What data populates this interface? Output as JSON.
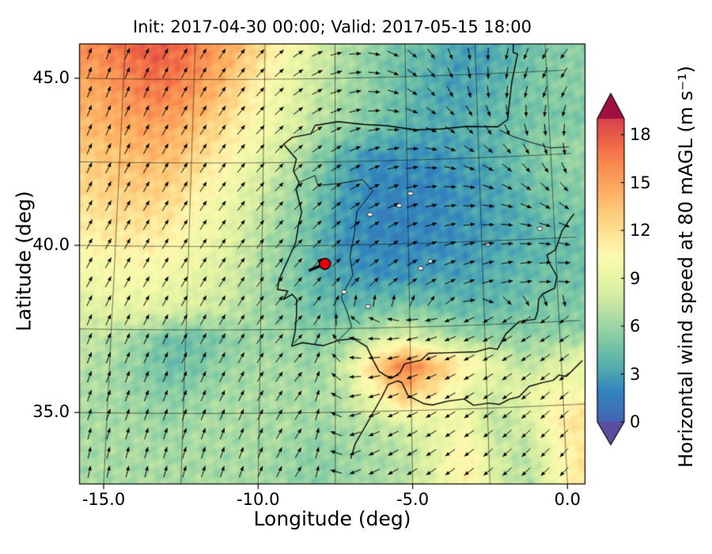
{
  "title": "Init: 2017-04-30 00:00; Valid: 2017-05-15 18:00",
  "axes": {
    "x_label": "Longitude (deg)",
    "y_label": "Latitude (deg)"
  },
  "colorbar": {
    "label": "Horizontal wind speed at 80 mAGL (m s⁻¹)",
    "tick_labels": [
      "0",
      "3",
      "6",
      "9",
      "12",
      "15",
      "18"
    ],
    "tick_values": [
      0,
      3,
      6,
      9,
      12,
      15,
      18
    ],
    "vmin": 0,
    "vmax": 19,
    "under_color": "#5b4ea1",
    "over_color": "#9e0f42"
  },
  "chart_data": {
    "type": "heatmap",
    "title": "Init: 2017-04-30 00:00; Valid: 2017-05-15 18:00",
    "xlabel": "Longitude (deg)",
    "ylabel": "Latitude (deg)",
    "units": "m s⁻¹",
    "x_ticks": [
      {
        "label": "-15.0",
        "value": -15
      },
      {
        "label": "-10.0",
        "value": -10
      },
      {
        "label": "-5.0",
        "value": -5
      },
      {
        "label": "0.0",
        "value": 0
      }
    ],
    "y_ticks": [
      {
        "label": "45.0",
        "value": 45
      },
      {
        "label": "40.0",
        "value": 40
      },
      {
        "label": "35.0",
        "value": 35
      }
    ],
    "lon_range": [
      -16.0,
      0.7
    ],
    "lat_range": [
      33.6,
      46.3
    ],
    "color_stops": [
      [
        0,
        "#4463b1"
      ],
      [
        2,
        "#3287bd"
      ],
      [
        3.5,
        "#54aeae"
      ],
      [
        5,
        "#7cc8a5"
      ],
      [
        6.5,
        "#a9dba3"
      ],
      [
        8,
        "#d5eda2"
      ],
      [
        9.5,
        "#eff8a6"
      ],
      [
        10.5,
        "#fdf9b0"
      ],
      [
        11.5,
        "#fee99c"
      ],
      [
        13,
        "#fdce7d"
      ],
      [
        14.5,
        "#fdae61"
      ],
      [
        16,
        "#f98e52"
      ],
      [
        17.5,
        "#ef6645"
      ],
      [
        19,
        "#d7434e"
      ]
    ],
    "speed_grid": [
      [
        16.5,
        17.5,
        18.5,
        17.5,
        16,
        14.5,
        12.5,
        10.5,
        8.5,
        7,
        6,
        5,
        4.5,
        3.5,
        3,
        3.5,
        4.5,
        5
      ],
      [
        15.5,
        16.5,
        17.5,
        17,
        15.5,
        13.5,
        11.5,
        9.5,
        8,
        6.5,
        5.5,
        4.5,
        4,
        3,
        3,
        4,
        5,
        5.5
      ],
      [
        14.5,
        15.5,
        16.5,
        16,
        14.5,
        12.5,
        10.5,
        9,
        7.5,
        6.5,
        5.5,
        4.5,
        3.5,
        3,
        3.5,
        4.5,
        5,
        5.5
      ],
      [
        14,
        14.5,
        15,
        14.5,
        13,
        11.5,
        10,
        8.5,
        7,
        6,
        5,
        4,
        3.5,
        3.5,
        4,
        4.5,
        5,
        5
      ],
      [
        13,
        13.5,
        14,
        13.5,
        12,
        10.5,
        9,
        7.5,
        5.5,
        3.5,
        2.5,
        2.5,
        2.5,
        3,
        3.5,
        4.5,
        5.5,
        6
      ],
      [
        12.5,
        13,
        13,
        12.5,
        11,
        9.5,
        8,
        6.5,
        5,
        3,
        2,
        2,
        2,
        2.5,
        3,
        4,
        5,
        5.5
      ],
      [
        11.5,
        12,
        12,
        11.5,
        10,
        9,
        7.5,
        6,
        4.5,
        2.5,
        2,
        1.8,
        2,
        2.5,
        3,
        3.5,
        4.5,
        5
      ],
      [
        10.5,
        11,
        11,
        10.5,
        9.5,
        8.5,
        7,
        5.5,
        4,
        2.5,
        2,
        2,
        2.2,
        2.5,
        3,
        3.5,
        4,
        4.5
      ],
      [
        9.5,
        10,
        10,
        9.5,
        9,
        8,
        6.5,
        5.5,
        4,
        3,
        2.5,
        2.5,
        3,
        3,
        3.5,
        4,
        4.5,
        4.5
      ],
      [
        8.5,
        9,
        9,
        8.5,
        8,
        7.5,
        6.5,
        5.5,
        4.5,
        4,
        4.5,
        5,
        4.5,
        4,
        4,
        4.5,
        5,
        5
      ],
      [
        7.5,
        7,
        6,
        4.5,
        4.5,
        5.5,
        6,
        6,
        5.5,
        6,
        7.5,
        8.5,
        7,
        6,
        5.5,
        5.5,
        5.5,
        5.5
      ],
      [
        7,
        6.5,
        5.5,
        4.5,
        5,
        6,
        6.5,
        6.5,
        6,
        8,
        13,
        17,
        14,
        11,
        9,
        7,
        8,
        9
      ],
      [
        6.5,
        6.5,
        6,
        5.5,
        6,
        6.5,
        6.5,
        6.5,
        6.5,
        7,
        10,
        13,
        11,
        9,
        8,
        9,
        10,
        10
      ],
      [
        6.5,
        6.5,
        6.5,
        6,
        6.5,
        6.5,
        6.5,
        6.5,
        6,
        6.5,
        7,
        8,
        9,
        10,
        7,
        8,
        11,
        12
      ],
      [
        6.5,
        6.5,
        6.5,
        6.5,
        6.5,
        6.5,
        6.5,
        6,
        5.5,
        6,
        6.5,
        7,
        9,
        11,
        8,
        7,
        10,
        12
      ]
    ],
    "quiver_u": [
      [
        0.34,
        0.42,
        0.5,
        0.64,
        0.87,
        1.0,
        0.77,
        0.17,
        -0.34,
        -0.64
      ],
      [
        0.34,
        0.42,
        0.5,
        0.64,
        0.82,
        0.98,
        0.87,
        0.34,
        -0.17,
        -0.5
      ],
      [
        0.42,
        0.47,
        0.53,
        0.64,
        0.77,
        0.91,
        1.0,
        0.91,
        0.57,
        0.09
      ],
      [
        0.47,
        0.5,
        0.54,
        0.62,
        0.71,
        0.82,
        0.94,
        1.0,
        0.97,
        0.82
      ],
      [
        0.47,
        0.48,
        0.52,
        0.56,
        0.64,
        0.74,
        0.85,
        0.93,
        0.98,
        1.0
      ],
      [
        0.37,
        0.41,
        0.45,
        0.53,
        0.71,
        -0.98,
        -0.97,
        -0.91,
        -0.87,
        -0.82
      ],
      [
        0.31,
        0.34,
        0.37,
        0.44,
        0.57,
        -0.97,
        -0.91,
        -0.85,
        -0.79,
        -0.74
      ],
      [
        0.21,
        0.24,
        0.28,
        0.34,
        0.5,
        -0.91,
        -0.85,
        -0.79,
        -0.72,
        -0.67
      ]
    ],
    "quiver_v": [
      [
        0.94,
        0.91,
        0.87,
        0.77,
        0.5,
        0.0,
        -0.64,
        -0.98,
        -0.94,
        -0.77
      ],
      [
        0.94,
        0.91,
        0.87,
        0.77,
        0.57,
        0.17,
        -0.5,
        -0.94,
        -0.98,
        -0.87
      ],
      [
        0.91,
        0.88,
        0.85,
        0.77,
        0.64,
        0.42,
        0.09,
        -0.42,
        -0.82,
        -1.0
      ],
      [
        0.88,
        0.87,
        0.84,
        0.79,
        0.71,
        0.57,
        0.34,
        0.09,
        -0.26,
        -0.57
      ],
      [
        0.88,
        0.87,
        0.86,
        0.83,
        0.77,
        0.67,
        0.53,
        0.37,
        0.21,
        0.03
      ],
      [
        0.93,
        0.91,
        0.89,
        0.85,
        0.71,
        0.17,
        -0.26,
        -0.42,
        -0.5,
        -0.57
      ],
      [
        0.95,
        0.94,
        0.93,
        0.9,
        0.82,
        -0.26,
        -0.42,
        -0.53,
        -0.62,
        -0.67
      ],
      [
        0.98,
        0.97,
        0.96,
        0.94,
        0.87,
        -0.42,
        -0.53,
        -0.62,
        -0.69,
        -0.74
      ]
    ],
    "graticule": {
      "lons": [
        -15,
        -12.5,
        -10,
        -7.5,
        -5,
        -2.5,
        0
      ],
      "lats": [
        35,
        37.5,
        40,
        42.5,
        45
      ]
    },
    "coastlines": [
      [
        [
          -1.1,
          46.3
        ],
        [
          -1.15,
          45.6
        ],
        [
          -1.0,
          45.55
        ],
        [
          -1.25,
          44.7
        ],
        [
          -1.45,
          43.6
        ],
        [
          -1.8,
          43.4
        ],
        [
          -2.9,
          43.45
        ],
        [
          -3.8,
          43.4
        ],
        [
          -4.7,
          43.4
        ],
        [
          -5.7,
          43.55
        ],
        [
          -6.5,
          43.6
        ],
        [
          -7.4,
          43.7
        ],
        [
          -8.2,
          43.6
        ],
        [
          -8.35,
          43.35
        ],
        [
          -9.0,
          43.25
        ],
        [
          -9.3,
          43.05
        ],
        [
          -8.85,
          42.6
        ],
        [
          -8.95,
          42.25
        ],
        [
          -8.75,
          41.9
        ],
        [
          -8.85,
          41.7
        ],
        [
          -8.65,
          41.0
        ],
        [
          -8.75,
          40.65
        ],
        [
          -8.85,
          40.1
        ],
        [
          -9.1,
          39.6
        ],
        [
          -9.4,
          39.0
        ],
        [
          -9.45,
          38.7
        ],
        [
          -9.1,
          38.65
        ],
        [
          -9.25,
          38.4
        ],
        [
          -8.95,
          38.55
        ],
        [
          -8.8,
          38.4
        ],
        [
          -8.8,
          37.95
        ],
        [
          -8.85,
          37.4
        ],
        [
          -8.95,
          37.0
        ],
        [
          -8.6,
          37.1
        ],
        [
          -7.9,
          37.0
        ],
        [
          -7.4,
          37.15
        ],
        [
          -6.9,
          37.2
        ],
        [
          -6.45,
          36.95
        ],
        [
          -6.25,
          36.55
        ],
        [
          -6.05,
          36.2
        ],
        [
          -5.8,
          36.05
        ],
        [
          -5.6,
          36.0
        ],
        [
          -5.35,
          36.15
        ],
        [
          -5.2,
          36.4
        ],
        [
          -4.65,
          36.5
        ],
        [
          -4.4,
          36.7
        ],
        [
          -3.7,
          36.7
        ],
        [
          -2.8,
          36.7
        ],
        [
          -2.35,
          36.8
        ],
        [
          -2.1,
          36.75
        ],
        [
          -1.8,
          37.2
        ],
        [
          -1.35,
          37.55
        ],
        [
          -0.8,
          37.6
        ],
        [
          -0.7,
          37.85
        ],
        [
          -0.65,
          38.2
        ],
        [
          -0.5,
          38.35
        ],
        [
          -0.1,
          38.5
        ],
        [
          0.0,
          38.85
        ],
        [
          -0.25,
          39.3
        ],
        [
          -0.3,
          39.5
        ],
        [
          0.0,
          39.65
        ],
        [
          0.25,
          40.2
        ],
        [
          0.55,
          40.55
        ],
        [
          0.7,
          40.7
        ]
      ],
      [
        [
          -7.0,
          33.6
        ],
        [
          -6.85,
          34.05
        ],
        [
          -6.3,
          34.9
        ],
        [
          -5.95,
          35.45
        ],
        [
          -5.75,
          35.8
        ],
        [
          -5.45,
          35.9
        ],
        [
          -5.3,
          35.85
        ],
        [
          -5.1,
          35.45
        ],
        [
          -4.6,
          35.2
        ],
        [
          -4.3,
          35.15
        ],
        [
          -3.8,
          35.25
        ],
        [
          -3.25,
          35.3
        ],
        [
          -2.95,
          35.1
        ],
        [
          -2.45,
          35.15
        ],
        [
          -2.1,
          35.1
        ],
        [
          -1.75,
          35.25
        ],
        [
          -1.45,
          35.3
        ],
        [
          -1.1,
          35.6
        ],
        [
          -0.65,
          35.7
        ],
        [
          -0.3,
          35.75
        ],
        [
          -0.1,
          35.9
        ],
        [
          0.15,
          35.85
        ],
        [
          0.7,
          36.3
        ]
      ]
    ],
    "borders": [
      [
        [
          -1.75,
          43.3
        ],
        [
          -1.3,
          43.1
        ],
        [
          -0.7,
          42.9
        ],
        [
          0.0,
          42.7
        ],
        [
          0.65,
          42.7
        ]
      ],
      [
        [
          -8.75,
          41.9
        ],
        [
          -8.2,
          42.1
        ],
        [
          -8.1,
          41.8
        ],
        [
          -7.35,
          41.85
        ],
        [
          -6.55,
          41.95
        ],
        [
          -6.2,
          41.6
        ],
        [
          -6.75,
          41.0
        ],
        [
          -6.85,
          40.3
        ],
        [
          -7.0,
          39.65
        ],
        [
          -6.9,
          39.1
        ],
        [
          -7.3,
          38.45
        ],
        [
          -7.1,
          38.0
        ],
        [
          -6.95,
          37.55
        ],
        [
          -7.4,
          37.15
        ]
      ]
    ],
    "lakes": [
      [
        -6.3,
        40.9
      ],
      [
        -5.3,
        41.15
      ],
      [
        -4.9,
        41.5
      ],
      [
        -4.25,
        39.45
      ],
      [
        -4.6,
        39.25
      ],
      [
        -2.3,
        39.9
      ],
      [
        -0.5,
        40.3
      ],
      [
        -6.4,
        38.15
      ],
      [
        -7.2,
        38.6
      ]
    ],
    "marker": {
      "lon": -7.85,
      "lat": 39.45,
      "color": "#e8000b"
    },
    "projection": {
      "lon_center": -7.6,
      "lon_half": 8.6,
      "lat_center": 39.4,
      "lat_half": 6.6,
      "convergence": 0.05,
      "curvature": 0.02,
      "tilt": 0.02
    }
  }
}
